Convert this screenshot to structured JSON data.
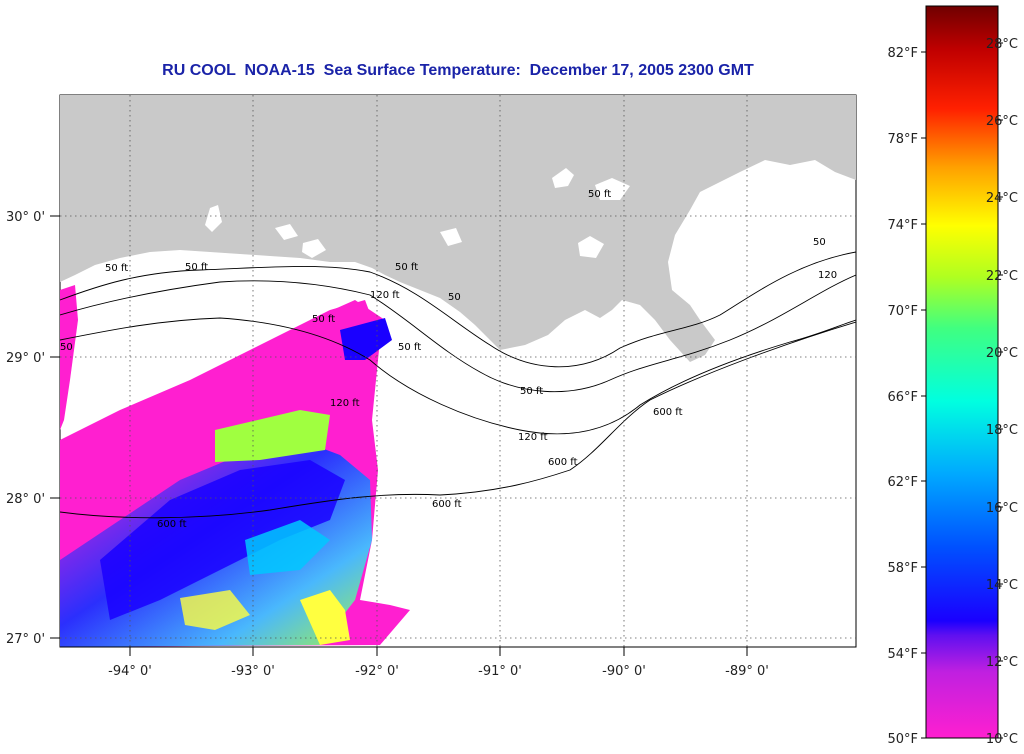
{
  "title": "RU COOL  NOAA-15  Sea Surface Temperature:  December 17, 2005 2300 GMT",
  "map": {
    "latitude_labels": [
      "30° 0'",
      "29° 0'",
      "28° 0'",
      "27° 0'"
    ],
    "longitude_labels": [
      "-94° 0'",
      "-93° 0'",
      "-92° 0'",
      "-91° 0'",
      "-90° 0'",
      "-89° 0'"
    ],
    "land_color": "#c9c9c9",
    "water_color": "#ffffff",
    "contour_labels": [
      "50 ft",
      "50 ft",
      "50 ft",
      "50 ft",
      "50 ft",
      "50 ft",
      "50 ft",
      "120 ft",
      "120 ft",
      "120 ft",
      "600 ft",
      "600 ft",
      "600 ft",
      "600 ft",
      "50",
      "50",
      "50",
      "120"
    ]
  },
  "colorbar": {
    "fahrenheit_labels": [
      "82°F",
      "78°F",
      "74°F",
      "70°F",
      "66°F",
      "62°F",
      "58°F",
      "54°F",
      "50°F"
    ],
    "celsius_labels": [
      "28°C",
      "26°C",
      "24°C",
      "22°C",
      "20°C",
      "18°C",
      "16°C",
      "14°C",
      "12°C",
      "10°C"
    ],
    "range_celsius": [
      10,
      29
    ],
    "colors": [
      "#ff1fd0",
      "#b020e0",
      "#1a00ff",
      "#0060ff",
      "#00c8ff",
      "#00ffc0",
      "#7cff40",
      "#ffff00",
      "#ff9a00",
      "#ff2000",
      "#b00000",
      "#7a0000"
    ]
  }
}
